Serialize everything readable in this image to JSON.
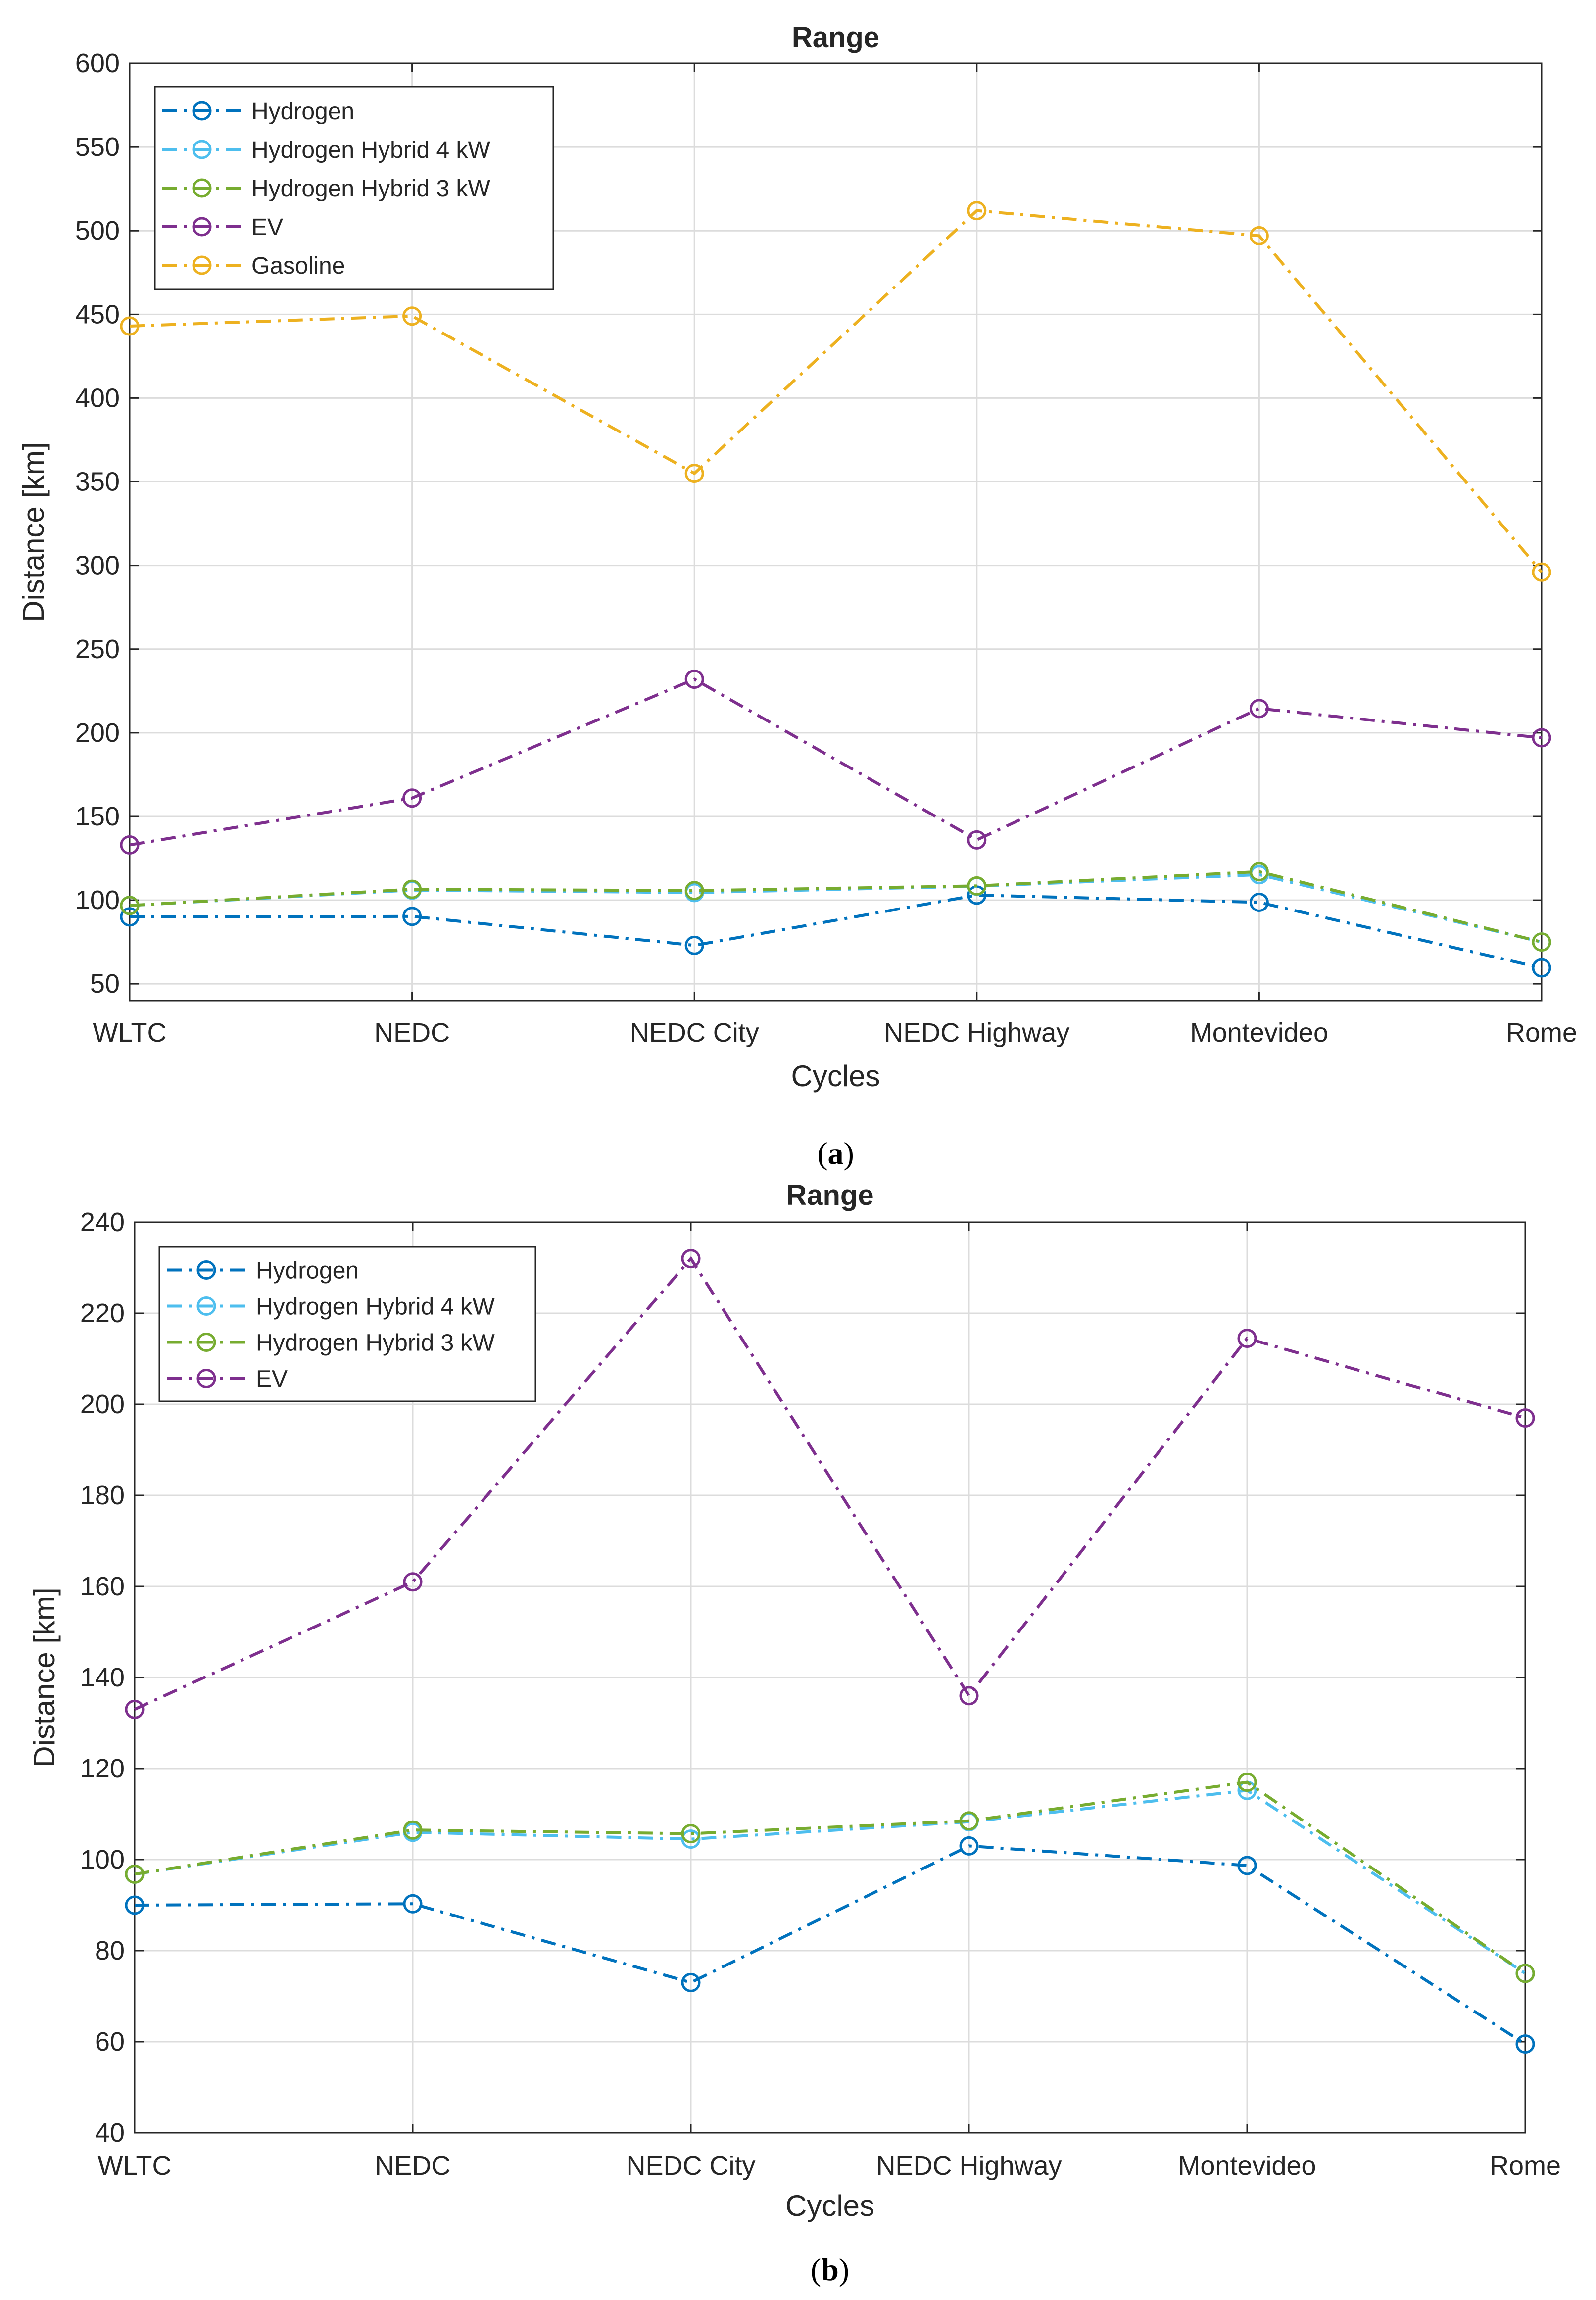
{
  "chart_data": [
    {
      "id": "a",
      "type": "line",
      "title": "Range",
      "xlabel": "Cycles",
      "ylabel": "Distance [km]",
      "caption": "a",
      "categories": [
        "WLTC",
        "NEDC",
        "NEDC City",
        "NEDC Highway",
        "Montevideo",
        "Rome"
      ],
      "ylim": [
        40,
        600
      ],
      "yticks": [
        50,
        100,
        150,
        200,
        250,
        300,
        350,
        400,
        450,
        500,
        550,
        600
      ],
      "grid": true,
      "legend_position": "top-left",
      "series": [
        {
          "name": "Hydrogen",
          "color": "#0072BD",
          "values": [
            90,
            90.3,
            73,
            103,
            98.7,
            59.5
          ]
        },
        {
          "name": "Hydrogen Hybrid 4 kW",
          "color": "#4DBEEE",
          "values": [
            96.8,
            106,
            104.5,
            108.3,
            115.2,
            75
          ]
        },
        {
          "name": "Hydrogen Hybrid 3 kW",
          "color": "#77AC30",
          "values": [
            96.8,
            106.5,
            105.7,
            108.5,
            117,
            75
          ]
        },
        {
          "name": "EV",
          "color": "#7E2F8E",
          "values": [
            133,
            161,
            232,
            136,
            214.5,
            197
          ]
        },
        {
          "name": "Gasoline",
          "color": "#EDB120",
          "values": [
            443,
            449,
            355,
            512,
            497,
            296
          ]
        }
      ]
    },
    {
      "id": "b",
      "type": "line",
      "title": "Range",
      "xlabel": "Cycles",
      "ylabel": "Distance [km]",
      "caption": "b",
      "categories": [
        "WLTC",
        "NEDC",
        "NEDC City",
        "NEDC Highway",
        "Montevideo",
        "Rome"
      ],
      "ylim": [
        40,
        240
      ],
      "yticks": [
        40,
        60,
        80,
        100,
        120,
        140,
        160,
        180,
        200,
        220,
        240
      ],
      "grid": true,
      "legend_position": "top-left",
      "series": [
        {
          "name": "Hydrogen",
          "color": "#0072BD",
          "values": [
            90,
            90.3,
            73,
            103,
            98.7,
            59.5
          ]
        },
        {
          "name": "Hydrogen Hybrid 4 kW",
          "color": "#4DBEEE",
          "values": [
            96.8,
            106,
            104.5,
            108.3,
            115.2,
            75
          ]
        },
        {
          "name": "Hydrogen Hybrid 3 kW",
          "color": "#77AC30",
          "values": [
            96.8,
            106.5,
            105.7,
            108.5,
            117,
            75
          ]
        },
        {
          "name": "EV",
          "color": "#7E2F8E",
          "values": [
            133,
            161,
            232,
            136,
            214.5,
            197
          ]
        }
      ]
    }
  ]
}
